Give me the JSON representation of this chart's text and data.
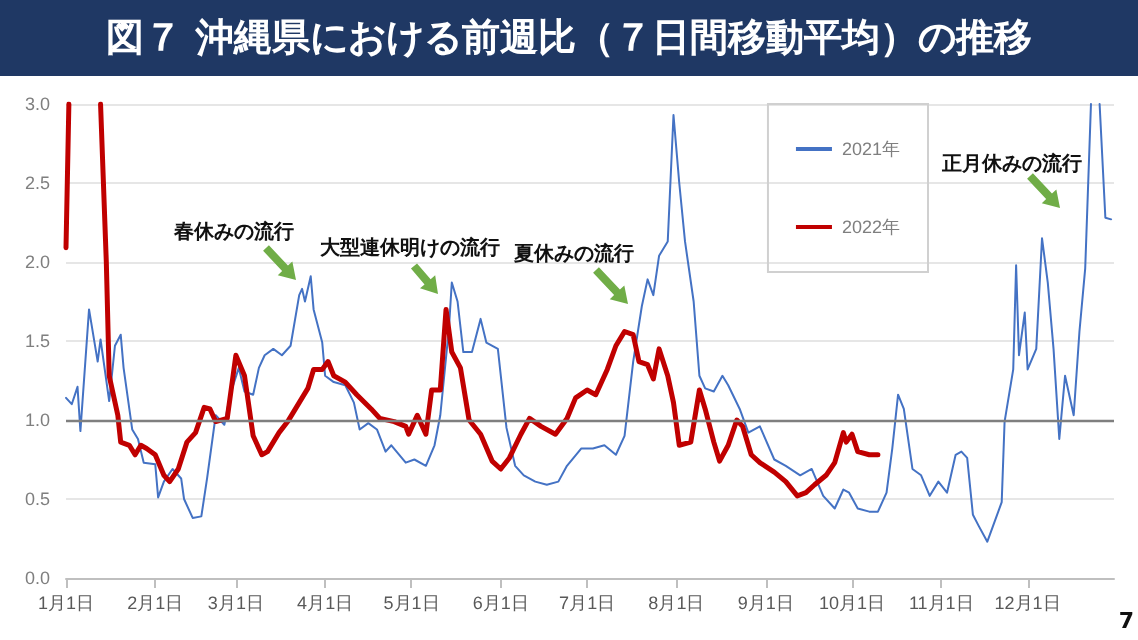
{
  "chart_data": {
    "type": "line",
    "title": "図７ 沖縄県における前週比（７日間移動平均）の推移",
    "series": [
      {
        "name": "2021年",
        "color": "#4472c4",
        "x": [
          "--01-01",
          "--01-03",
          "--01-05",
          "--01-06",
          "--01-09",
          "--01-12",
          "--01-13",
          "--01-16",
          "--01-18",
          "--01-20",
          "--01-21",
          "--01-24",
          "--01-26",
          "--01-28",
          "--02-01",
          "--02-02",
          "--02-04",
          "--02-07",
          "--02-10",
          "--02-11",
          "--02-14",
          "--02-17",
          "--02-19",
          "--02-22",
          "--02-25",
          "--02-27",
          "--03-02",
          "--03-04",
          "--03-07",
          "--03-09",
          "--03-11",
          "--03-14",
          "--03-17",
          "--03-20",
          "--03-23",
          "--03-24",
          "--03-25",
          "--03-27",
          "--03-28",
          "--03-31",
          "--04-01",
          "--04-04",
          "--04-08",
          "--04-11",
          "--04-13",
          "--04-16",
          "--04-19",
          "--04-22",
          "--04-24",
          "--04-29",
          "--05-02",
          "--05-06",
          "--05-09",
          "--05-11",
          "--05-14",
          "--05-15",
          "--05-17",
          "--05-19",
          "--05-22",
          "--05-25",
          "--05-27",
          "--05-31",
          "--06-03",
          "--06-06",
          "--06-09",
          "--06-13",
          "--06-17",
          "--06-21",
          "--06-24",
          "--06-29",
          "--07-03",
          "--07-07",
          "--07-11",
          "--07-14",
          "--07-17",
          "--07-20",
          "--07-22",
          "--07-24",
          "--07-26",
          "--07-29",
          "--07-31",
          "--08-02",
          "--08-04",
          "--08-07",
          "--08-09",
          "--08-11",
          "--08-14",
          "--08-17",
          "--08-19",
          "--08-23",
          "--08-26",
          "--08-30",
          "--09-04",
          "--09-08",
          "--09-13",
          "--09-17",
          "--09-21",
          "--09-25",
          "--09-28",
          "--09-30",
          "--10-03",
          "--10-07",
          "--10-10",
          "--10-13",
          "--10-15",
          "--10-16",
          "--10-17",
          "--10-19",
          "--10-22",
          "--10-25",
          "--10-28",
          "--10-31",
          "--11-03",
          "--11-06",
          "--11-08",
          "--11-10",
          "--11-12",
          "--11-14",
          "--11-17",
          "--11-19",
          "--11-22",
          "--11-23",
          "--11-26",
          "--11-27",
          "--11-28",
          "--11-30",
          "--12-01",
          "--12-04",
          "--12-06",
          "--12-08",
          "--12-10",
          "--12-12",
          "--12-14",
          "--12-17",
          "--12-19",
          "--12-21",
          "--12-23",
          "--12-24",
          "--12-26",
          "--12-28",
          "--12-30"
        ],
        "values": [
          1.14,
          1.1,
          1.21,
          0.93,
          1.7,
          1.37,
          1.51,
          1.12,
          1.47,
          1.54,
          1.33,
          0.94,
          0.88,
          0.73,
          0.72,
          0.51,
          0.61,
          0.69,
          0.63,
          0.5,
          0.38,
          0.39,
          0.63,
          1.03,
          0.97,
          1.16,
          1.33,
          1.18,
          1.16,
          1.33,
          1.41,
          1.45,
          1.41,
          1.47,
          1.79,
          1.83,
          1.75,
          1.91,
          1.7,
          1.49,
          1.28,
          1.24,
          1.22,
          1.11,
          0.94,
          0.98,
          0.94,
          0.8,
          0.84,
          0.73,
          0.75,
          0.71,
          0.84,
          1.03,
          1.58,
          1.87,
          1.75,
          1.43,
          1.43,
          1.64,
          1.49,
          1.45,
          0.95,
          0.71,
          0.65,
          0.61,
          0.59,
          0.61,
          0.71,
          0.82,
          0.82,
          0.84,
          0.78,
          0.9,
          1.37,
          1.72,
          1.89,
          1.79,
          2.04,
          2.13,
          2.93,
          2.5,
          2.13,
          1.75,
          1.28,
          1.2,
          1.18,
          1.28,
          1.22,
          1.07,
          0.92,
          0.96,
          0.75,
          0.71,
          0.65,
          0.69,
          0.52,
          0.44,
          0.56,
          0.54,
          0.44,
          0.42,
          0.42,
          0.54,
          0.82,
          0.99,
          1.16,
          1.07,
          0.69,
          0.65,
          0.52,
          0.61,
          0.54,
          0.78,
          0.8,
          0.76,
          0.4,
          0.33,
          0.23,
          0.33,
          0.48,
          0.99,
          1.32,
          1.98,
          1.41,
          1.68,
          1.32,
          1.45,
          2.15,
          1.87,
          1.45,
          0.88,
          1.28,
          1.03,
          1.56,
          1.96,
          3.0,
          null,
          3.0,
          2.28,
          2.27
        ]
      },
      {
        "name": "2022年",
        "color": "#c00000",
        "x": [
          "--01-01",
          "--01-02",
          "--01-07",
          "--01-13",
          "--01-15",
          "--01-16",
          "--01-19",
          "--01-20",
          "--01-23",
          "--01-25",
          "--01-27",
          "--01-29",
          "--02-01",
          "--02-04",
          "--02-06",
          "--02-09",
          "--02-12",
          "--02-15",
          "--02-18",
          "--02-20",
          "--02-22",
          "--02-26",
          "--03-01",
          "--03-04",
          "--03-07",
          "--03-10",
          "--03-12",
          "--03-16",
          "--03-19",
          "--03-23",
          "--03-26",
          "--03-28",
          "--03-31",
          "--04-02",
          "--04-04",
          "--04-08",
          "--04-12",
          "--04-17",
          "--04-20",
          "--04-25",
          "--04-29",
          "--04-30",
          "--05-03",
          "--05-06",
          "--05-08",
          "--05-11",
          "--05-13",
          "--05-15",
          "--05-18",
          "--05-21",
          "--05-25",
          "--05-29",
          "--06-01",
          "--06-04",
          "--06-08",
          "--06-11",
          "--06-15",
          "--06-20",
          "--06-24",
          "--06-27",
          "--07-01",
          "--07-04",
          "--07-08",
          "--07-11",
          "--07-14",
          "--07-17",
          "--07-19",
          "--07-22",
          "--07-24",
          "--07-26",
          "--07-29",
          "--07-31",
          "--08-02",
          "--08-06",
          "--08-09",
          "--08-11",
          "--08-14",
          "--08-16",
          "--08-19",
          "--08-22",
          "--08-24",
          "--08-27",
          "--08-30",
          "--09-04",
          "--09-08",
          "--09-12",
          "--09-15",
          "--09-18",
          "--09-22",
          "--09-25",
          "--09-28",
          "--09-29",
          "--10-01",
          "--10-03",
          "--10-07",
          "--10-10"
        ],
        "values": [
          2.09,
          3.0,
          null,
          3.0,
          2.0,
          1.28,
          1.03,
          0.86,
          0.84,
          0.78,
          0.84,
          0.82,
          0.78,
          0.65,
          0.61,
          0.69,
          0.86,
          0.92,
          1.08,
          1.07,
          0.99,
          1.01,
          1.41,
          1.28,
          0.9,
          0.78,
          0.8,
          0.92,
          0.99,
          1.11,
          1.2,
          1.32,
          1.32,
          1.37,
          1.28,
          1.24,
          1.16,
          1.07,
          1.01,
          0.99,
          0.96,
          0.91,
          1.03,
          0.91,
          1.19,
          1.19,
          1.7,
          1.43,
          1.33,
          1.0,
          0.91,
          0.74,
          0.69,
          0.76,
          0.91,
          1.01,
          0.96,
          0.91,
          1.01,
          1.14,
          1.19,
          1.16,
          1.32,
          1.47,
          1.56,
          1.54,
          1.37,
          1.35,
          1.26,
          1.45,
          1.28,
          1.11,
          0.84,
          0.86,
          1.19,
          1.07,
          0.86,
          0.74,
          0.84,
          1.0,
          0.96,
          0.78,
          0.73,
          0.67,
          0.61,
          0.52,
          0.54,
          0.59,
          0.65,
          0.73,
          0.92,
          0.86,
          0.91,
          0.8,
          0.78,
          0.78
        ]
      }
    ],
    "xlim": [
      "--01-01",
      "--12-31"
    ],
    "xticks": [
      {
        "value": "--01-01",
        "label": "1月1日"
      },
      {
        "value": "--02-01",
        "label": "2月1日"
      },
      {
        "value": "--03-01",
        "label": "3月1日"
      },
      {
        "value": "--04-01",
        "label": "4月1日"
      },
      {
        "value": "--05-01",
        "label": "5月1日"
      },
      {
        "value": "--06-01",
        "label": "6月1日"
      },
      {
        "value": "--07-01",
        "label": "7月1日"
      },
      {
        "value": "--08-01",
        "label": "8月1日"
      },
      {
        "value": "--09-01",
        "label": "9月1日"
      },
      {
        "value": "--10-01",
        "label": "10月1日"
      },
      {
        "value": "--11-01",
        "label": "11月1日"
      },
      {
        "value": "--12-01",
        "label": "12月1日"
      }
    ],
    "ylim": [
      0,
      3
    ],
    "yticks": [
      {
        "value": 0,
        "label": "0.0"
      },
      {
        "value": 0.5,
        "label": "0.5"
      },
      {
        "value": 1,
        "label": "1.0"
      },
      {
        "value": 1.5,
        "label": "1.5"
      },
      {
        "value": 2,
        "label": "2.0"
      },
      {
        "value": 2.5,
        "label": "2.5"
      },
      {
        "value": 3,
        "label": "3.0"
      }
    ],
    "ref_lines": [
      {
        "axis": "y",
        "value": 1,
        "color": "#7f7f7f"
      }
    ],
    "annotations": [
      "春休みの流行",
      "大型連休明けの流行",
      "夏休みの流行",
      "正月休みの流行",
      "7"
    ],
    "grid": "y",
    "legend": "top right",
    "marker": "none",
    "line_style": "solid"
  }
}
